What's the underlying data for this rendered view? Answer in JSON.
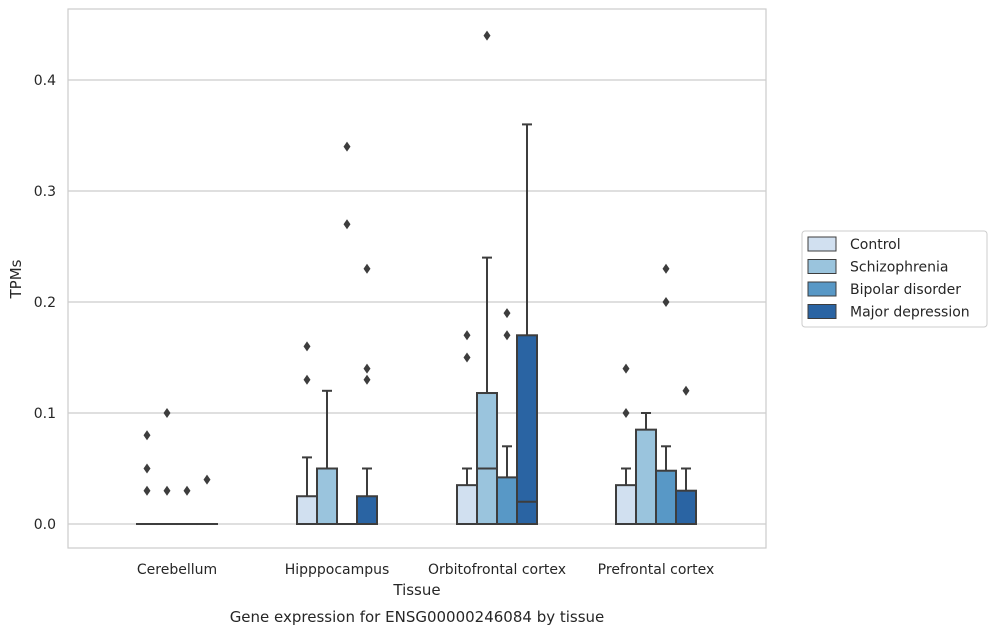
{
  "caption": "Gene expression for ENSG00000246084 by tissue",
  "chart_data": {
    "type": "box",
    "xlabel": "Tissue",
    "ylabel": "TPMs",
    "ylim": [
      -0.021,
      0.465
    ],
    "yticks": [
      0.0,
      0.1,
      0.2,
      0.3,
      0.4
    ],
    "ytick_labels": [
      "0.0",
      "0.1",
      "0.2",
      "0.3",
      "0.4"
    ],
    "grid": "horizontal",
    "legend_position": "right",
    "categories": [
      "Cerebellum",
      "Hipppocampus",
      "Orbitofrontal cortex",
      "Prefrontal cortex"
    ],
    "series": [
      {
        "name": "Control",
        "color": "#d1e0f0",
        "boxes": [
          {
            "q1": 0,
            "median": 0,
            "q3": 0,
            "whisker_low": 0,
            "whisker_high": 0,
            "outliers": [
              0.03,
              0.05,
              0.08
            ]
          },
          {
            "q1": 0,
            "median": 0,
            "q3": 0.025,
            "whisker_low": 0,
            "whisker_high": 0.06,
            "outliers": [
              0.13,
              0.16
            ]
          },
          {
            "q1": 0,
            "median": 0,
            "q3": 0.035,
            "whisker_low": 0,
            "whisker_high": 0.05,
            "outliers": [
              0.15,
              0.17
            ]
          },
          {
            "q1": 0,
            "median": 0,
            "q3": 0.035,
            "whisker_low": 0,
            "whisker_high": 0.05,
            "outliers": [
              0.1,
              0.14
            ]
          }
        ]
      },
      {
        "name": "Schizophrenia",
        "color": "#9ac4dd",
        "boxes": [
          {
            "q1": 0,
            "median": 0,
            "q3": 0,
            "whisker_low": 0,
            "whisker_high": 0,
            "outliers": [
              0.03,
              0.1
            ]
          },
          {
            "q1": 0,
            "median": 0,
            "q3": 0.05,
            "whisker_low": 0,
            "whisker_high": 0.12,
            "outliers": []
          },
          {
            "q1": 0,
            "median": 0.05,
            "q3": 0.118,
            "whisker_low": 0,
            "whisker_high": 0.24,
            "outliers": [
              0.44
            ]
          },
          {
            "q1": 0,
            "median": 0,
            "q3": 0.085,
            "whisker_low": 0,
            "whisker_high": 0.1,
            "outliers": []
          }
        ]
      },
      {
        "name": "Bipolar disorder",
        "color": "#5898c6",
        "boxes": [
          {
            "q1": 0,
            "median": 0,
            "q3": 0,
            "whisker_low": 0,
            "whisker_high": 0,
            "outliers": [
              0.03
            ]
          },
          {
            "q1": 0,
            "median": 0,
            "q3": 0,
            "whisker_low": 0,
            "whisker_high": 0,
            "outliers": [
              0.27,
              0.34
            ]
          },
          {
            "q1": 0,
            "median": 0,
            "q3": 0.042,
            "whisker_low": 0,
            "whisker_high": 0.07,
            "outliers": [
              0.17,
              0.19
            ]
          },
          {
            "q1": 0,
            "median": 0,
            "q3": 0.048,
            "whisker_low": 0,
            "whisker_high": 0.07,
            "outliers": [
              0.2,
              0.23
            ]
          }
        ]
      },
      {
        "name": "Major depression",
        "color": "#2a64a3",
        "boxes": [
          {
            "q1": 0,
            "median": 0,
            "q3": 0,
            "whisker_low": 0,
            "whisker_high": 0,
            "outliers": [
              0.04
            ]
          },
          {
            "q1": 0,
            "median": 0,
            "q3": 0.025,
            "whisker_low": 0,
            "whisker_high": 0.05,
            "outliers": [
              0.13,
              0.14,
              0.23
            ]
          },
          {
            "q1": 0,
            "median": 0.02,
            "q3": 0.17,
            "whisker_low": 0,
            "whisker_high": 0.36,
            "outliers": []
          },
          {
            "q1": 0,
            "median": 0,
            "q3": 0.03,
            "whisker_low": 0,
            "whisker_high": 0.05,
            "outliers": [
              0.12
            ]
          }
        ]
      }
    ]
  }
}
